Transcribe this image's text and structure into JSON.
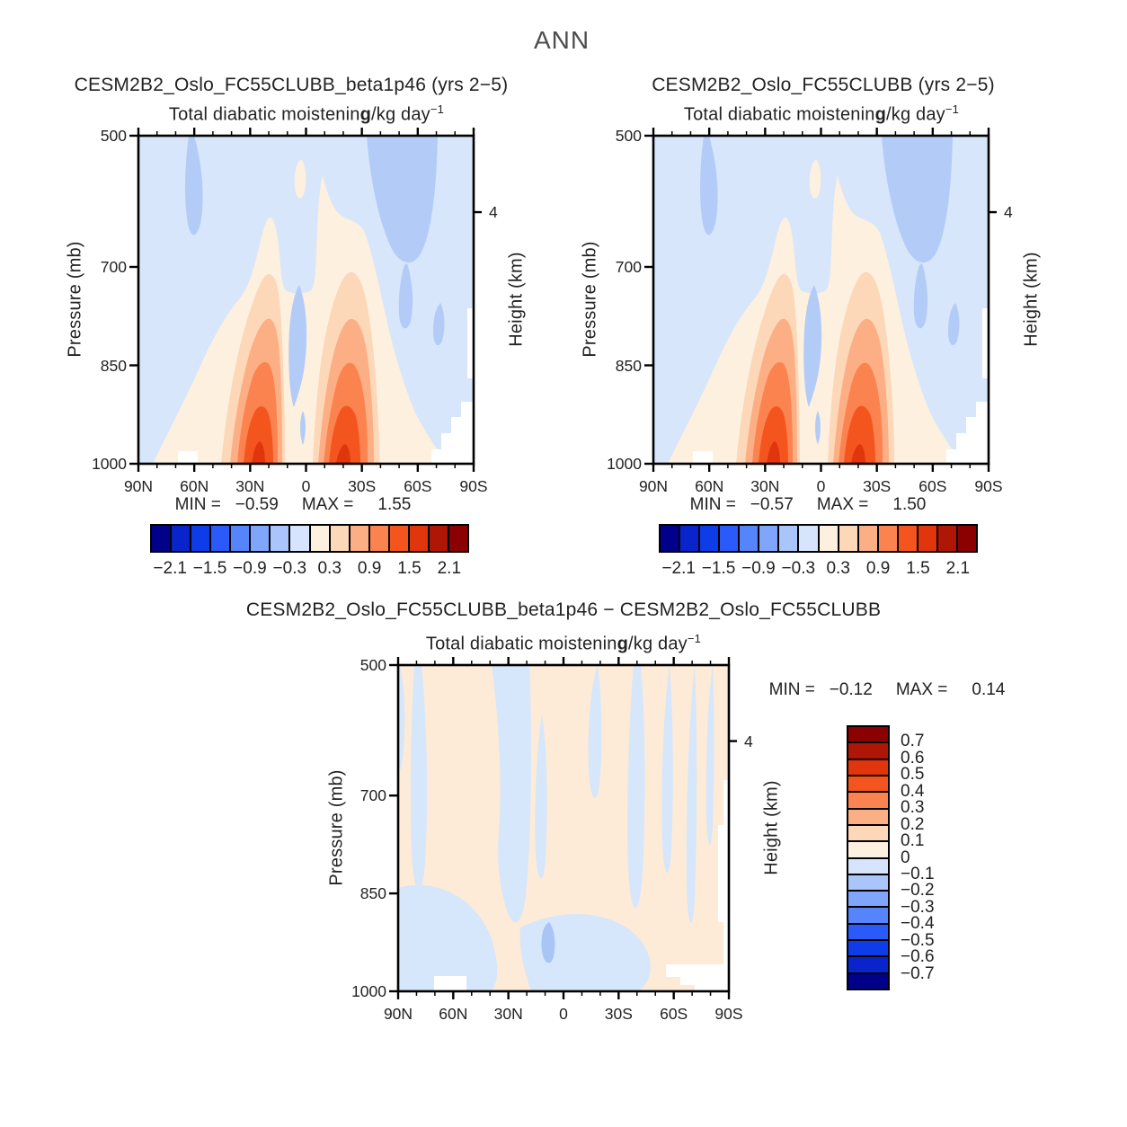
{
  "header": {
    "title": "ANN"
  },
  "subtitle": {
    "pre": "Total diabatic moistenin",
    "g": "g",
    "post": "/kg day",
    "sup": "−1"
  },
  "axes": {
    "y_label": "Pressure (mb)",
    "right_label": "Height (km)",
    "right_tick": "4",
    "x_ticks": [
      "90N",
      "60N",
      "30N",
      "0",
      "30S",
      "60S",
      "90S"
    ],
    "y_ticks": [
      "500",
      "700",
      "850",
      "1000"
    ]
  },
  "panels": {
    "left": {
      "title": "CESM2B2_Oslo_FC55CLUBB_beta1p46 (yrs 2−5)",
      "min_label": "MIN =",
      "min_value": "−0.59",
      "max_label": "MAX =",
      "max_value": "1.55"
    },
    "right": {
      "title": "CESM2B2_Oslo_FC55CLUBB (yrs 2−5)",
      "min_label": "MIN =",
      "min_value": "−0.57",
      "max_label": "MAX =",
      "max_value": "1.50"
    },
    "diff": {
      "title": "CESM2B2_Oslo_FC55CLUBB_beta1p46 − CESM2B2_Oslo_FC55CLUBB",
      "min_label": "MIN =",
      "min_value": "−0.12",
      "max_label": "MAX =",
      "max_value": "0.14"
    }
  },
  "colorbar_h": {
    "labels": [
      "−2.1",
      "−1.5",
      "−0.9",
      "−0.3",
      "0.3",
      "0.9",
      "1.5",
      "2.1"
    ],
    "colors": [
      "#00008b",
      "#0a24cc",
      "#0d3ce8",
      "#2a5bfa",
      "#5584fb",
      "#80a6fc",
      "#a9c5fc",
      "#d6e5fd",
      "#fdf0de",
      "#fcd7b8",
      "#fcae85",
      "#fb8350",
      "#f4551f",
      "#e1350e",
      "#b01605",
      "#8b0000"
    ]
  },
  "colorbar_v": {
    "labels": [
      "0.7",
      "0.6",
      "0.5",
      "0.4",
      "0.3",
      "0.2",
      "0.1",
      "0",
      "−0.1",
      "−0.2",
      "−0.3",
      "−0.4",
      "−0.5",
      "−0.6",
      "−0.7"
    ],
    "colors": [
      "#8b0000",
      "#b01605",
      "#e1350e",
      "#f4551f",
      "#fb8350",
      "#fcae85",
      "#fcd7b8",
      "#fdf0de",
      "#d6e5fd",
      "#a9c5fc",
      "#80a6fc",
      "#5584fb",
      "#2a5bfa",
      "#0d3ce8",
      "#0a24cc",
      "#00008b"
    ]
  },
  "chart_data": [
    {
      "type": "heatmap",
      "panel": "top-left",
      "title": "CESM2B2_Oslo_FC55CLUBB_beta1p46 (yrs 2−5)",
      "field": "Total diabatic moistening",
      "units": "g/kg day−1",
      "x": {
        "ticks": [
          "90N",
          "60N",
          "30N",
          "0",
          "30S",
          "60S",
          "90S"
        ]
      },
      "y": {
        "label": "Pressure (mb)",
        "ticks": [
          500,
          700,
          850,
          1000
        ],
        "orientation": "pressure increases downward, linear"
      },
      "y2": {
        "label": "Height (km)",
        "ticks": [
          4
        ]
      },
      "stats": {
        "min": -0.59,
        "max": 1.55
      },
      "contour_interval": 0.3,
      "levels": [
        -2.1,
        -1.8,
        -1.5,
        -1.2,
        -0.9,
        -0.6,
        -0.3,
        0,
        0.3,
        0.6,
        0.9,
        1.2,
        1.5,
        1.8,
        2.1
      ],
      "legend_position": "horizontal colorbar below panel",
      "pattern": "Strong low-level moistening (>1.2 g/kg/day) near 1000 mb at ~20N and ~20S; weak drying (−0.3 to −0.6) aloft near 55N, 45–70S and in a narrow equatorial band; missing data (white) near surface at high southern latitudes"
    },
    {
      "type": "heatmap",
      "panel": "top-right",
      "title": "CESM2B2_Oslo_FC55CLUBB (yrs 2−5)",
      "field": "Total diabatic moistening",
      "units": "g/kg day−1",
      "x": {
        "ticks": [
          "90N",
          "60N",
          "30N",
          "0",
          "30S",
          "60S",
          "90S"
        ]
      },
      "y": {
        "label": "Pressure (mb)",
        "ticks": [
          500,
          700,
          850,
          1000
        ],
        "orientation": "pressure increases downward, linear"
      },
      "y2": {
        "label": "Height (km)",
        "ticks": [
          4
        ]
      },
      "stats": {
        "min": -0.57,
        "max": 1.5
      },
      "contour_interval": 0.3,
      "levels": [
        -2.1,
        -1.8,
        -1.5,
        -1.2,
        -0.9,
        -0.6,
        -0.3,
        0,
        0.3,
        0.6,
        0.9,
        1.2,
        1.5,
        1.8,
        2.1
      ],
      "legend_position": "horizontal colorbar below panel",
      "pattern": "Nearly identical to top-left: subtropical low-level moistening maxima at ~20N/20S, weak drying aloft and at the equator"
    },
    {
      "type": "heatmap",
      "panel": "bottom-difference",
      "title": "CESM2B2_Oslo_FC55CLUBB_beta1p46 − CESM2B2_Oslo_FC55CLUBB",
      "field": "Total diabatic moistening",
      "units": "g/kg day−1",
      "x": {
        "ticks": [
          "90N",
          "60N",
          "30N",
          "0",
          "30S",
          "60S",
          "90S"
        ]
      },
      "y": {
        "label": "Pressure (mb)",
        "ticks": [
          500,
          700,
          850,
          1000
        ],
        "orientation": "pressure increases downward, linear"
      },
      "y2": {
        "label": "Height (km)",
        "ticks": [
          4
        ]
      },
      "stats": {
        "min": -0.12,
        "max": 0.14
      },
      "contour_interval": 0.1,
      "levels": [
        -0.7,
        -0.6,
        -0.5,
        -0.4,
        -0.3,
        -0.2,
        -0.1,
        0,
        0.1,
        0.2,
        0.3,
        0.4,
        0.5,
        0.6,
        0.7
      ],
      "legend_position": "vertical colorbar right of panel",
      "pattern": "Small alternating positive/negative differences (mostly within ±0.1) arranged in vertical streaks; one −0.1 to −0.2 patch near 900 mb just north of the equator"
    }
  ]
}
